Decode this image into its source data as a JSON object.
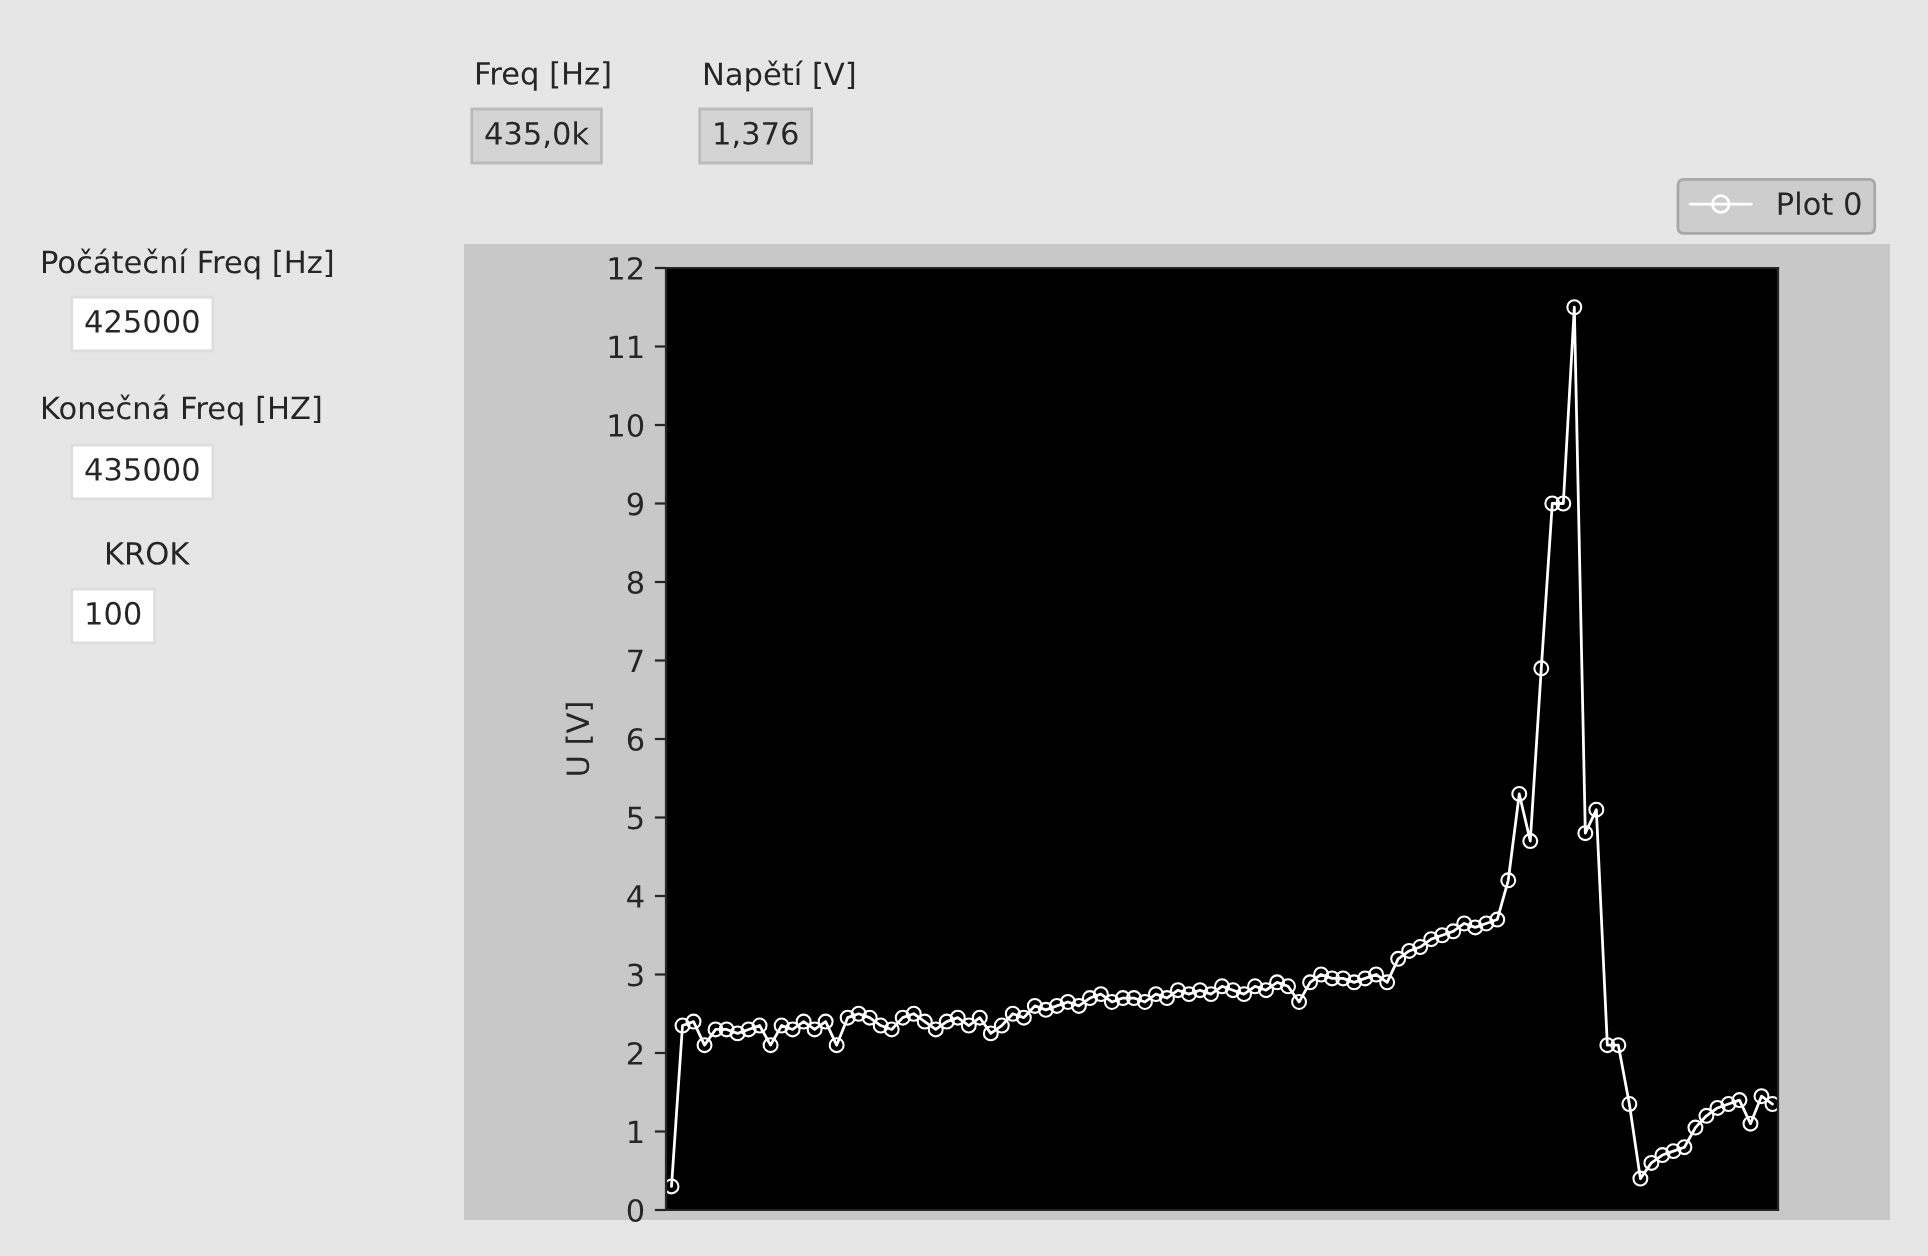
{
  "chart_data": {
    "type": "line",
    "ylabel": "U [V]",
    "categories": [
      null,
      null,
      null,
      null,
      null,
      null,
      null,
      null,
      null,
      null,
      null,
      null,
      null,
      null,
      null,
      null,
      null,
      null,
      null,
      null,
      null,
      null,
      null,
      null,
      null,
      null,
      null,
      null,
      null,
      null,
      null,
      null,
      null,
      null,
      null,
      null,
      null,
      null,
      null,
      null,
      null,
      null,
      null,
      null,
      null,
      null,
      null,
      null,
      null,
      null,
      null,
      null,
      null,
      null,
      null,
      null,
      null,
      null,
      null,
      null,
      null,
      null,
      null,
      null,
      null,
      null,
      null,
      null,
      null,
      null,
      null,
      null,
      null,
      null,
      null,
      null,
      null,
      null,
      null,
      null,
      null,
      null,
      null,
      null,
      null,
      null,
      null,
      null,
      null,
      null,
      null,
      null,
      null,
      null,
      null,
      null,
      null,
      null,
      null,
      null,
      null
    ],
    "series": [
      {
        "name": "Plot 0",
        "color": "#ffffff",
        "values": [
          0.3,
          2.35,
          2.4,
          2.1,
          2.3,
          2.3,
          2.25,
          2.3,
          2.35,
          2.1,
          2.35,
          2.3,
          2.4,
          2.3,
          2.4,
          2.1,
          2.45,
          2.5,
          2.45,
          2.35,
          2.3,
          2.45,
          2.5,
          2.4,
          2.3,
          2.4,
          2.45,
          2.35,
          2.45,
          2.25,
          2.35,
          2.5,
          2.45,
          2.6,
          2.55,
          2.6,
          2.65,
          2.6,
          2.7,
          2.75,
          2.65,
          2.7,
          2.7,
          2.65,
          2.75,
          2.7,
          2.8,
          2.75,
          2.8,
          2.75,
          2.85,
          2.8,
          2.75,
          2.85,
          2.8,
          2.9,
          2.85,
          2.65,
          2.9,
          3.0,
          2.95,
          2.95,
          2.9,
          2.95,
          3.0,
          2.9,
          3.2,
          3.3,
          3.35,
          3.45,
          3.5,
          3.55,
          3.65,
          3.6,
          3.65,
          3.7,
          4.2,
          5.3,
          4.7,
          6.9,
          9.0,
          9.0,
          11.5,
          4.8,
          5.1,
          2.1,
          2.1,
          1.35,
          0.4,
          0.6,
          0.7,
          0.75,
          0.8,
          1.05,
          1.2,
          1.3,
          1.35,
          1.4,
          1.1,
          1.45,
          1.35
        ]
      }
    ],
    "ylim": [
      0,
      12
    ],
    "yticks": [
      0,
      1,
      2,
      3,
      4,
      5,
      6,
      7,
      8,
      9,
      10,
      11,
      12
    ],
    "tick_labels": "y",
    "grid": false,
    "legend": "top right",
    "marker": "circle",
    "line_style": "solid",
    "annotations": [
      "Freq [Hz]",
      "435,0k",
      "Napětí [V]",
      "1,376",
      "Počáteční Freq [Hz]",
      "425000",
      "Konečná Freq [HZ]",
      "435000",
      "KROK",
      "100"
    ]
  }
}
